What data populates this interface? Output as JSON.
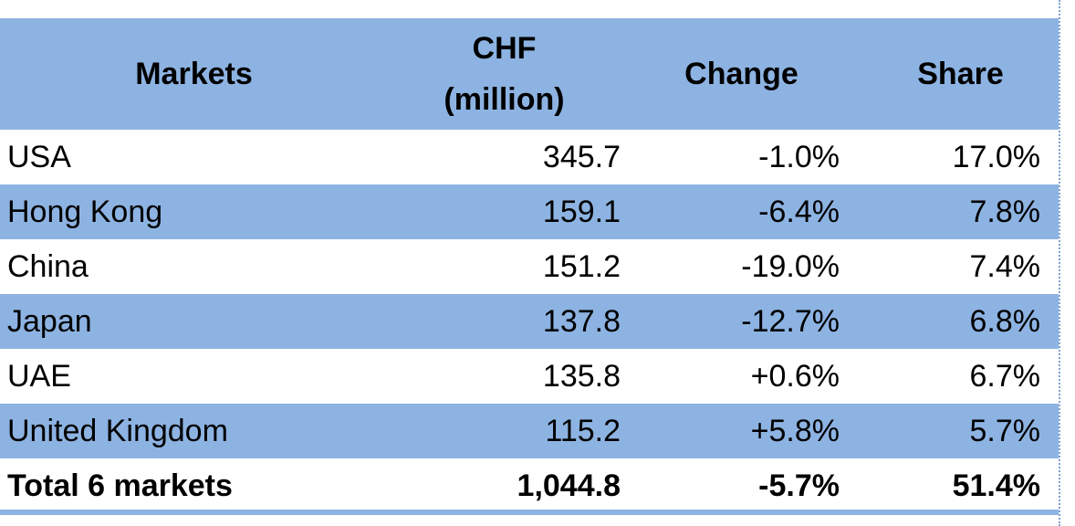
{
  "table": {
    "headers": {
      "markets": "Markets",
      "chf_line1": "CHF",
      "chf_line2": "(million)",
      "change": "Change",
      "share": "Share"
    },
    "rows": [
      {
        "market": "USA",
        "chf": "345.7",
        "change": "-1.0%",
        "share": "17.0%"
      },
      {
        "market": "Hong Kong",
        "chf": "159.1",
        "change": "-6.4%",
        "share": "7.8%"
      },
      {
        "market": "China",
        "chf": "151.2",
        "change": "-19.0%",
        "share": "7.4%"
      },
      {
        "market": "Japan",
        "chf": "137.8",
        "change": "-12.7%",
        "share": "6.8%"
      },
      {
        "market": "UAE",
        "chf": "135.8",
        "change": "+0.6%",
        "share": "6.7%"
      },
      {
        "market": "United Kingdom",
        "chf": "115.2",
        "change": "+5.8%",
        "share": "5.7%"
      }
    ],
    "total": {
      "market": "Total 6 markets",
      "chf": "1,044.8",
      "change": "-5.7%",
      "share": "51.4%"
    }
  },
  "colors": {
    "band": "#8db3e2",
    "background": "#ffffff",
    "text": "#000000"
  }
}
